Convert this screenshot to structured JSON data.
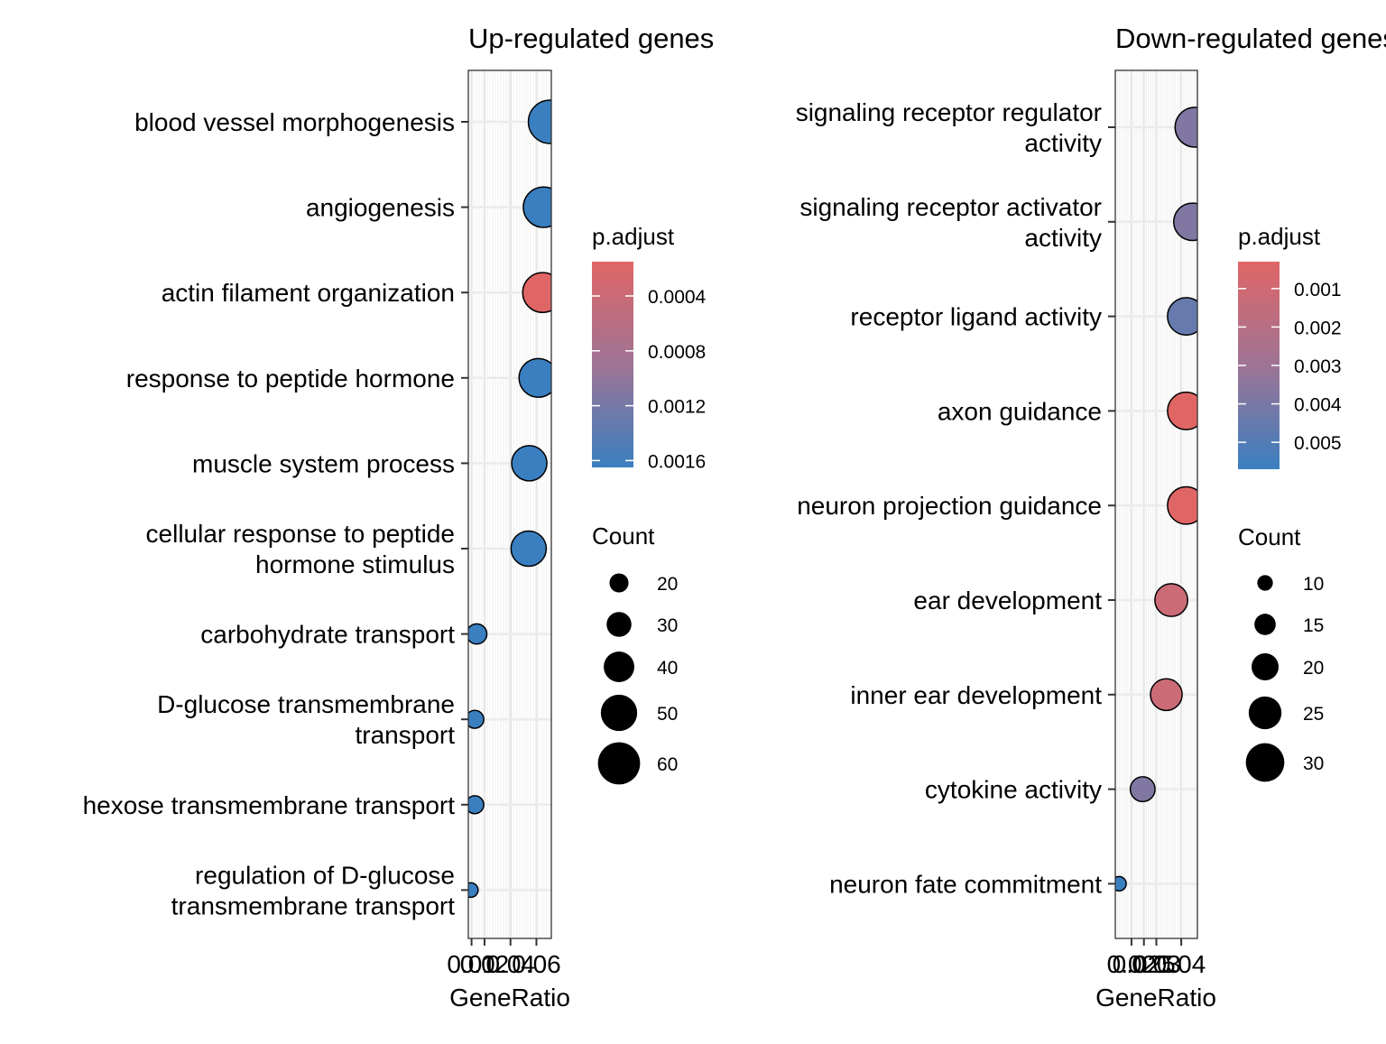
{
  "chart_data": [
    {
      "type": "scatter",
      "title": "Up-regulated genes",
      "xlabel": "GeneRatio",
      "ylabel": "",
      "xlim": [
        0.0075,
        0.0715
      ],
      "x_ticks": [
        0.01,
        0.02,
        0.04,
        0.06
      ],
      "x_tick_labels": [
        "0.01",
        "0.02",
        "0.04",
        "0.06"
      ],
      "grid": true,
      "legend_placement": "right",
      "categories": [
        "blood vessel morphogenesis",
        "angiogenesis",
        "actin filament organization",
        "response to peptide hormone",
        "muscle system process",
        "cellular response to peptide hormone stimulus",
        "carbohydrate transport",
        "D-glucose transmembrane transport",
        "hexose transmembrane transport",
        "regulation of D-glucose transmembrane transport"
      ],
      "category_lines": [
        [
          "blood vessel morphogenesis"
        ],
        [
          "angiogenesis"
        ],
        [
          "actin filament organization"
        ],
        [
          "response to peptide hormone"
        ],
        [
          "muscle system process"
        ],
        [
          "cellular response to peptide",
          "hormone stimulus"
        ],
        [
          "carbohydrate transport"
        ],
        [
          "D-glucose transmembrane",
          "transport"
        ],
        [
          "hexose transmembrane transport"
        ],
        [
          "regulation of D-glucose",
          "transmembrane transport"
        ]
      ],
      "gene_ratio": [
        0.0705,
        0.0655,
        0.0648,
        0.0615,
        0.0545,
        0.054,
        0.014,
        0.0125,
        0.0125,
        0.0095
      ],
      "count": [
        62,
        57,
        56,
        54,
        48,
        48,
        22,
        18,
        18,
        12
      ],
      "p_adjust": [
        0.00165,
        0.00165,
        0.00015,
        0.00165,
        0.00165,
        0.00165,
        0.00165,
        0.00165,
        0.00165,
        0.00165
      ],
      "color_legend": {
        "title": "p.adjust",
        "range": [
          0.00015,
          0.00165
        ],
        "ticks": [
          0.0004,
          0.0008,
          0.0012,
          0.0016
        ],
        "tick_labels": [
          "0.0004",
          "0.0008",
          "0.0012",
          "0.0016"
        ],
        "low_color": "#E06666",
        "mid_color": "#9E7495",
        "high_color": "#3A7FC0"
      },
      "size_legend": {
        "title": "Count",
        "values": [
          20,
          30,
          40,
          50,
          60
        ],
        "labels": [
          "20",
          "30",
          "40",
          "50",
          "60"
        ]
      }
    },
    {
      "type": "scatter",
      "title": "Down-regulated genes",
      "xlabel": "GeneRatio",
      "ylabel": "",
      "xlim": [
        0.0135,
        0.0465
      ],
      "x_ticks": [
        0.02,
        0.025,
        0.03,
        0.04
      ],
      "x_tick_labels": [
        "0.02",
        "0.025",
        "0.03",
        "0.04"
      ],
      "grid": true,
      "legend_placement": "right",
      "categories": [
        "signaling receptor regulator activity",
        "signaling receptor activator activity",
        "receptor ligand activity",
        "axon guidance",
        "neuron projection guidance",
        "ear development",
        "inner ear development",
        "cytokine activity",
        "neuron fate commitment"
      ],
      "category_lines": [
        [
          "signaling receptor regulator",
          "activity"
        ],
        [
          "signaling receptor activator",
          "activity"
        ],
        [
          "receptor ligand activity"
        ],
        [
          "axon guidance"
        ],
        [
          "neuron projection guidance"
        ],
        [
          "ear development"
        ],
        [
          "inner ear development"
        ],
        [
          "cytokine activity"
        ],
        [
          "neuron fate commitment"
        ]
      ],
      "gene_ratio": [
        0.0455,
        0.0445,
        0.042,
        0.042,
        0.042,
        0.036,
        0.034,
        0.0245,
        0.015
      ],
      "count": [
        31,
        29,
        29,
        29,
        29,
        25,
        24,
        18,
        9
      ],
      "p_adjust": [
        0.0038,
        0.0038,
        0.0045,
        0.0003,
        0.0003,
        0.0012,
        0.0012,
        0.0038,
        0.0057
      ],
      "color_legend": {
        "title": "p.adjust",
        "range": [
          0.0003,
          0.0057
        ],
        "ticks": [
          0.001,
          0.002,
          0.003,
          0.004,
          0.005
        ],
        "tick_labels": [
          "0.001",
          "0.002",
          "0.003",
          "0.004",
          "0.005"
        ],
        "low_color": "#E06666",
        "mid_color": "#9E7495",
        "high_color": "#3A7FC0"
      },
      "size_legend": {
        "title": "Count",
        "values": [
          10,
          15,
          20,
          25,
          30
        ],
        "labels": [
          "10",
          "15",
          "20",
          "25",
          "30"
        ]
      }
    }
  ]
}
